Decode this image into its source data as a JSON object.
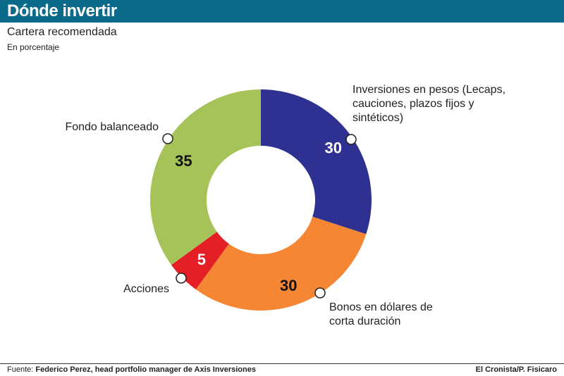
{
  "header": {
    "title": "Dónde invertir"
  },
  "chart_data": {
    "type": "pie",
    "title": "Cartera recomendada",
    "subtitle": "En porcentaje",
    "categories": [
      "Inversiones en pesos (Lecaps, cauciones, plazos fijos y sintéticos)",
      "Bonos en dólares de corta duración",
      "Acciones",
      "Fondo balanceado"
    ],
    "labels": [
      [
        "Inversiones en pesos (Lecaps,",
        "cauciones, plazos fijos y",
        "sintéticos)"
      ],
      [
        "Bonos en dólares de",
        "corta duración"
      ],
      [
        "Acciones"
      ],
      [
        "Fondo balanceado"
      ]
    ],
    "values": [
      30,
      30,
      5,
      35
    ],
    "colors": [
      "#2e3191",
      "#f58634",
      "#e31e24",
      "#a6c35a"
    ],
    "value_label_colors": [
      "#ffffff",
      "#111111",
      "#ffffff",
      "#111111"
    ],
    "donut": true
  },
  "footer": {
    "source_prefix": "Fuente:",
    "source_name": "Federico Perez, head portfolio manager de Axis Inversiones",
    "credit": "El Cronista/P. Fisicaro"
  }
}
